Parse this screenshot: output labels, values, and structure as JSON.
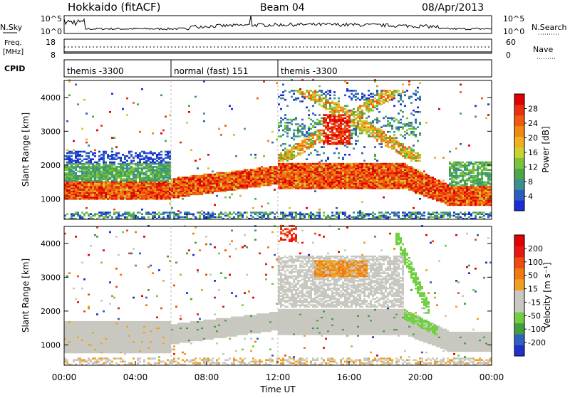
{
  "header": {
    "station": "Hokkaido (fitACF)",
    "beam": "Beam 04",
    "date": "08/Apr/2013"
  },
  "nsky_panel": {
    "left_label": "N.Sky",
    "left_ticks": [
      "10^5",
      "10^0"
    ],
    "right_ticks": [
      "10^5",
      "10^0"
    ],
    "right_label": "N.Search"
  },
  "freq_panel": {
    "left_label_1": "Freq.",
    "left_label_2": "[MHz]",
    "left_ticks": [
      "18",
      "8"
    ],
    "right_ticks": [
      "60",
      "0"
    ],
    "right_label": "Nave"
  },
  "cpid_panel": {
    "label": "CPID",
    "segments": [
      {
        "text": "themis -3300",
        "start_h": 0,
        "end_h": 6
      },
      {
        "text": "normal (fast) 151",
        "start_h": 6,
        "end_h": 12
      },
      {
        "text": "themis -3300",
        "start_h": 12,
        "end_h": 24
      }
    ]
  },
  "chart_data": [
    {
      "type": "heatmap",
      "name": "power",
      "ylabel": "Slant Range [km]",
      "x_range_h": [
        0,
        24
      ],
      "ylim": [
        400,
        4500
      ],
      "y_ticks": [
        "1000",
        "2000",
        "3000",
        "4000"
      ],
      "colorbar": {
        "label": "Power [dB]",
        "ticks": [
          "4",
          "8",
          "12",
          "16",
          "20",
          "24",
          "28"
        ],
        "colors": [
          "#1a2ed8",
          "#2a5fc0",
          "#3c8f8f",
          "#4aa84a",
          "#7cc43c",
          "#c8d230",
          "#f0b020",
          "#f08a10",
          "#f05a10",
          "#e83010",
          "#e00000"
        ]
      }
    },
    {
      "type": "heatmap",
      "name": "velocity",
      "ylabel": "Slant Range [km]",
      "xlabel": "Time UT",
      "x_range_h": [
        0,
        24
      ],
      "x_ticks": [
        "00:00",
        "04:00",
        "08:00",
        "12:00",
        "16:00",
        "20:00",
        "00:00"
      ],
      "ylim": [
        400,
        4500
      ],
      "y_ticks": [
        "1000",
        "2000",
        "3000",
        "4000"
      ],
      "colorbar": {
        "label": "Velocity [m s⁻¹]",
        "ticks": [
          "200",
          "100",
          "50",
          "15",
          "-15",
          "-50",
          "-100",
          "-200"
        ],
        "colors": [
          "#2030c8",
          "#3060c0",
          "#40a040",
          "#70d040",
          "#c8c8c0",
          "#c8c8c0",
          "#f0a020",
          "#f07a10",
          "#f04a10",
          "#e81810",
          "#e00000"
        ]
      }
    }
  ]
}
